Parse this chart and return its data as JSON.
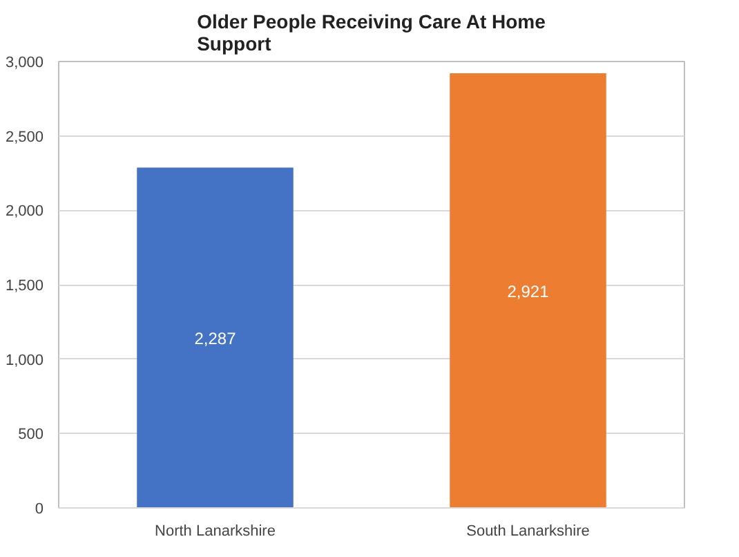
{
  "chart_data": {
    "type": "bar",
    "title": "Older People Receiving Care At Home Support",
    "categories": [
      "North Lanarkshire",
      "South Lanarkshire"
    ],
    "values": [
      2287,
      2921
    ],
    "colors": [
      "#4472c4",
      "#ed7d31"
    ],
    "value_labels": [
      "2,287",
      "2,921"
    ],
    "ylim": [
      0,
      3000
    ],
    "yticks": [
      0,
      500,
      {
        "value": 1000,
        "label": "1,000"
      },
      {
        "value": 1500,
        "label": "1,500"
      },
      {
        "value": 2000,
        "label": "2,000"
      },
      {
        "value": 2500,
        "label": "2,500"
      },
      {
        "value": 3000,
        "label": "3,000"
      }
    ],
    "grid": "y"
  }
}
